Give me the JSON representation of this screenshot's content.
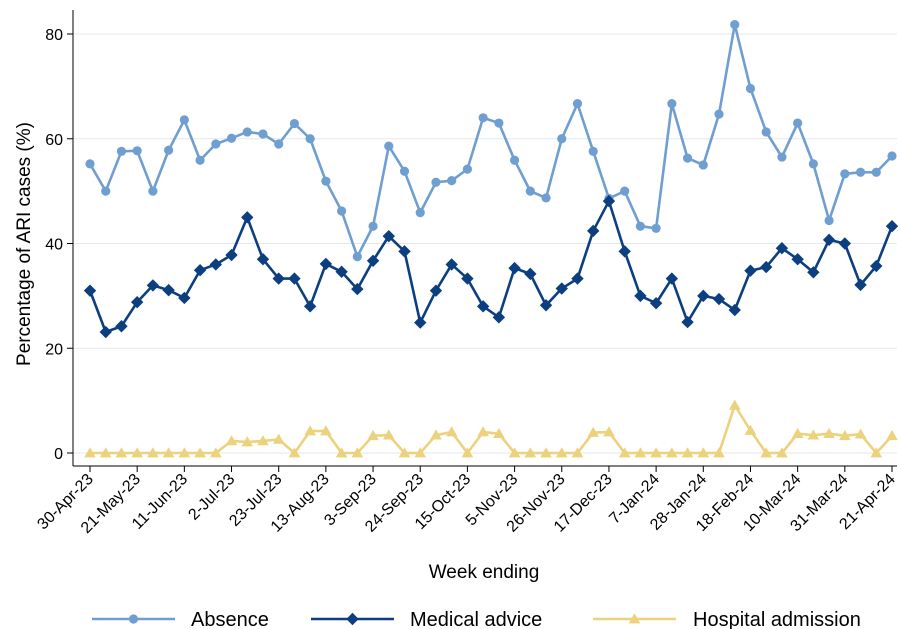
{
  "chart_data": {
    "type": "line",
    "xlabel": "Week ending",
    "ylabel": "Percentage of ARI cases (%)",
    "ylim": [
      0,
      84
    ],
    "yticks": [
      0,
      20,
      40,
      60,
      80
    ],
    "grid": "horizontal",
    "legend_position": "bottom",
    "x": [
      "30-Apr-23",
      "7-May-23",
      "14-May-23",
      "21-May-23",
      "28-May-23",
      "4-Jun-23",
      "11-Jun-23",
      "18-Jun-23",
      "25-Jun-23",
      "2-Jul-23",
      "9-Jul-23",
      "16-Jul-23",
      "23-Jul-23",
      "30-Jul-23",
      "6-Aug-23",
      "13-Aug-23",
      "20-Aug-23",
      "27-Aug-23",
      "3-Sep-23",
      "10-Sep-23",
      "17-Sep-23",
      "24-Sep-23",
      "1-Oct-23",
      "8-Oct-23",
      "15-Oct-23",
      "22-Oct-23",
      "29-Oct-23",
      "5-Nov-23",
      "12-Nov-23",
      "19-Nov-23",
      "26-Nov-23",
      "3-Dec-23",
      "10-Dec-23",
      "17-Dec-23",
      "24-Dec-23",
      "31-Dec-23",
      "7-Jan-24",
      "14-Jan-24",
      "21-Jan-24",
      "28-Jan-24",
      "4-Feb-24",
      "11-Feb-24",
      "18-Feb-24",
      "25-Feb-24",
      "3-Mar-24",
      "10-Mar-24",
      "17-Mar-24",
      "24-Mar-24",
      "31-Mar-24",
      "7-Apr-24",
      "14-Apr-24",
      "21-Apr-24"
    ],
    "xtick_labels": [
      "30-Apr-23",
      "21-May-23",
      "11-Jun-23",
      "2-Jul-23",
      "23-Jul-23",
      "13-Aug-23",
      "3-Sep-23",
      "24-Sep-23",
      "15-Oct-23",
      "5-Nov-23",
      "26-Nov-23",
      "17-Dec-23",
      "7-Jan-24",
      "28-Jan-24",
      "18-Feb-24",
      "10-Mar-24",
      "31-Mar-24",
      "21-Apr-24"
    ],
    "series": [
      {
        "name": "Absence",
        "color": "#6f9fd1",
        "marker": "circle",
        "values": [
          55.2,
          50.0,
          57.6,
          57.7,
          50.0,
          57.8,
          63.6,
          55.9,
          59.0,
          60.1,
          61.3,
          60.9,
          59.0,
          62.9,
          60.0,
          51.9,
          46.2,
          37.5,
          43.3,
          58.6,
          53.8,
          45.9,
          51.7,
          52.0,
          54.2,
          64.0,
          63.0,
          55.9,
          50.0,
          48.7,
          60.0,
          66.7,
          57.6,
          48.6,
          50.0,
          43.3,
          42.9,
          66.7,
          56.3,
          55.0,
          64.7,
          81.8,
          69.6,
          61.3,
          56.5,
          63.0,
          55.2,
          44.4,
          53.3,
          53.6,
          53.6,
          56.7
        ]
      },
      {
        "name": "Medical advice",
        "color": "#0c3f7f",
        "marker": "diamond",
        "values": [
          31.0,
          23.1,
          24.2,
          28.8,
          32.0,
          31.1,
          29.6,
          34.9,
          36.0,
          37.8,
          45.0,
          37.0,
          33.3,
          33.3,
          28.0,
          36.1,
          34.6,
          31.3,
          36.7,
          41.4,
          38.5,
          24.9,
          31.0,
          36.0,
          33.3,
          28.0,
          25.9,
          35.3,
          34.2,
          28.2,
          31.4,
          33.3,
          42.4,
          48.1,
          38.5,
          30.0,
          28.6,
          33.3,
          25.0,
          30.0,
          29.4,
          27.3,
          34.8,
          35.5,
          39.1,
          37.0,
          34.5,
          40.7,
          40.0,
          32.1,
          35.7,
          43.3
        ]
      },
      {
        "name": "Hospital admission",
        "color": "#ecd27c",
        "marker": "triangle",
        "values": [
          0,
          0,
          0,
          0,
          0,
          0,
          0,
          0,
          0,
          2.3,
          2.1,
          2.3,
          2.6,
          0,
          4.2,
          4.2,
          0,
          0,
          3.3,
          3.4,
          0,
          0,
          3.4,
          4.0,
          0,
          4.0,
          3.7,
          0,
          0,
          0,
          0,
          0,
          3.9,
          4.0,
          0,
          0,
          0,
          0,
          0,
          0,
          0,
          9.1,
          4.3,
          0,
          0,
          3.7,
          3.4,
          3.7,
          3.3,
          3.6,
          0,
          3.3
        ]
      }
    ]
  }
}
